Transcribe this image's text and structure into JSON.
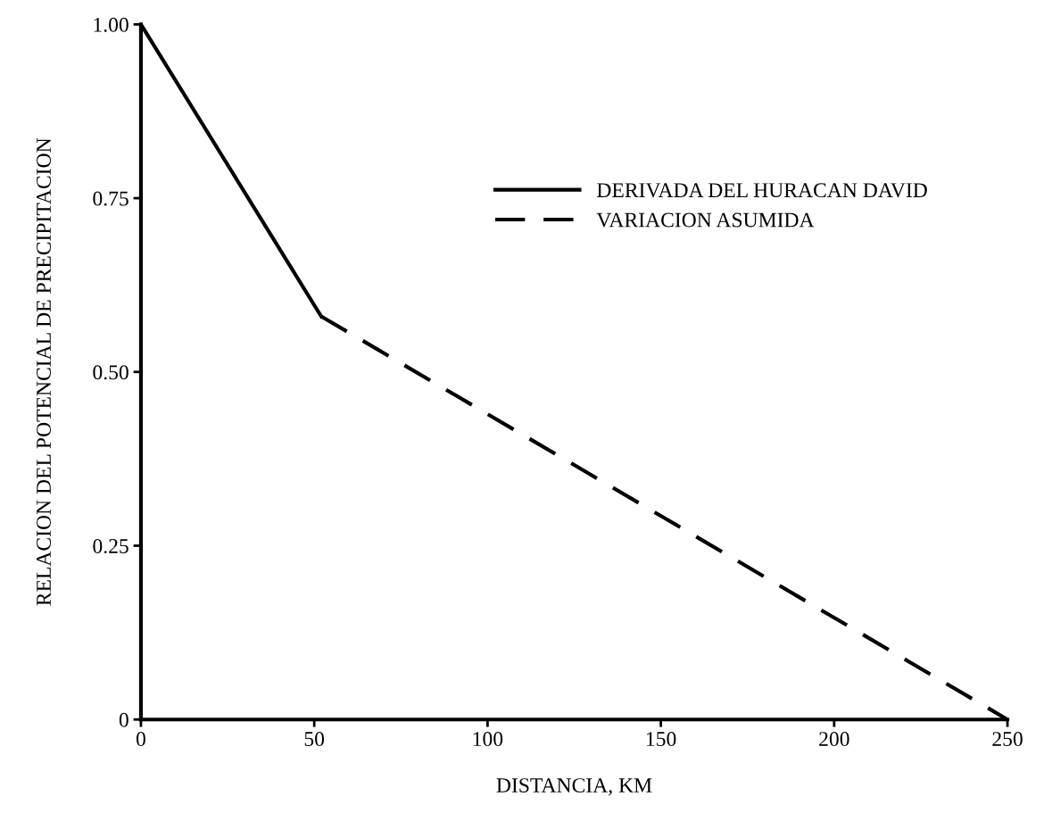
{
  "chart_data": {
    "type": "line",
    "xlabel": "DISTANCIA, KM",
    "ylabel": "RELACION DEL POTENCIAL DE PRECIPITACION",
    "series": [
      {
        "name": "DERIVADA DEL HURACAN DAVID",
        "color": "#000000",
        "line_style": "solid",
        "x": [
          0,
          52
        ],
        "values": [
          1.0,
          0.58
        ]
      },
      {
        "name": "VARIACION ASUMIDA",
        "color": "#000000",
        "line_style": "dashed",
        "x": [
          52,
          250
        ],
        "values": [
          0.58,
          0
        ]
      }
    ],
    "xlim": [
      0,
      250
    ],
    "ylim": [
      0,
      1
    ],
    "xticks": [
      0,
      50,
      100,
      150,
      200,
      250
    ],
    "yticks": [
      0,
      {
        "value": 0.25,
        "label": "0.25"
      },
      {
        "value": 0.5,
        "label": "0.50"
      },
      {
        "value": 0.75,
        "label": "0.75"
      },
      {
        "value": 1,
        "label": "1.00"
      }
    ],
    "grid": false,
    "legend": "top right",
    "marker": "none"
  }
}
